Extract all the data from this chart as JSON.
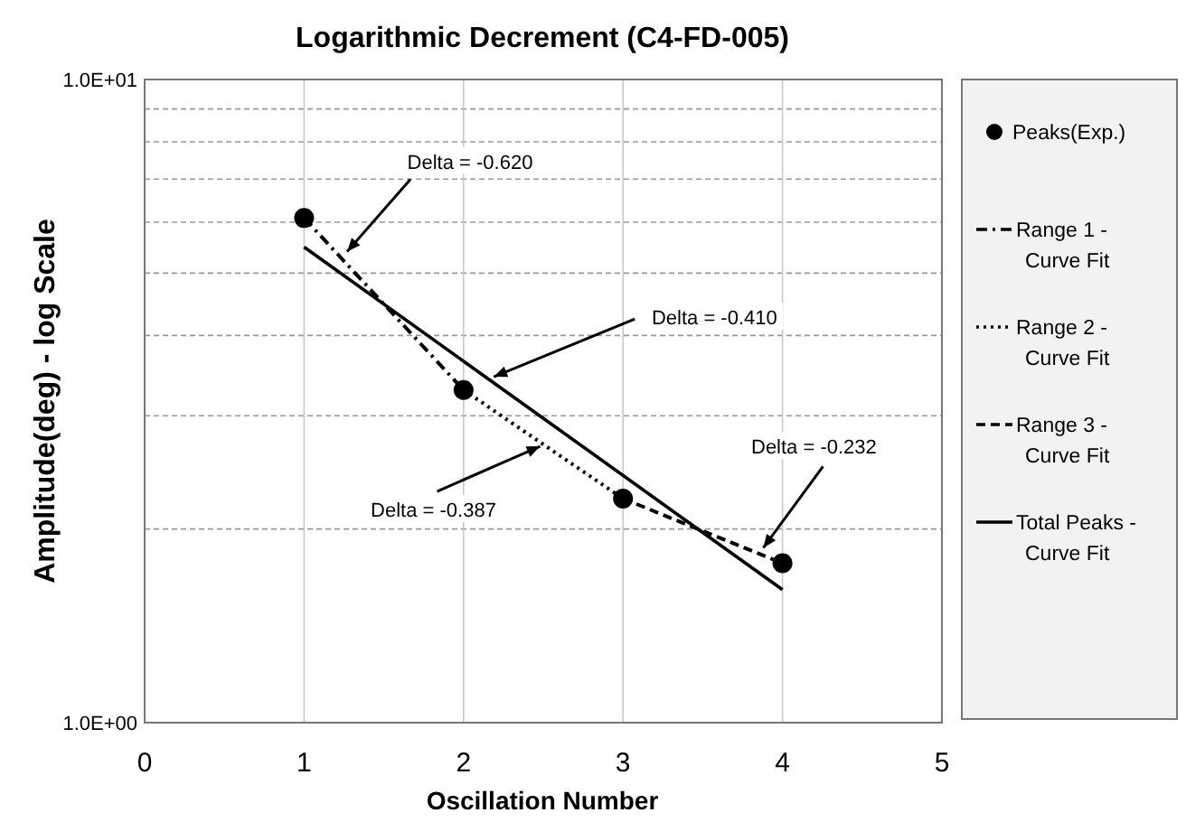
{
  "chart_data": {
    "type": "line",
    "title": "Logarithmic Decrement (C4-FD-005)",
    "xlabel": "Oscillation Number",
    "ylabel": "Amplitude(deg) - log Scale",
    "log": "y",
    "xlim": [
      0,
      5
    ],
    "xticks": [
      0,
      1,
      2,
      3,
      4,
      5
    ],
    "ylim": [
      1,
      10
    ],
    "yticks": [
      {
        "value": 1,
        "label": "1.0E+00"
      },
      {
        "value": 2,
        "label": null
      },
      {
        "value": 3,
        "label": null
      },
      {
        "value": 4,
        "label": null
      },
      {
        "value": 5,
        "label": null
      },
      {
        "value": 6,
        "label": null
      },
      {
        "value": 7,
        "label": null
      },
      {
        "value": 8,
        "label": null
      },
      {
        "value": 9,
        "label": null
      },
      {
        "value": 10,
        "label": "1.0E+01"
      }
    ],
    "grid": true,
    "legend": "right",
    "series": [
      {
        "name": "Peaks(Exp.)",
        "type": "scatter",
        "marker": "circle",
        "color": "#000000",
        "x": [
          1,
          2,
          3,
          4
        ],
        "values": [
          6.09,
          3.29,
          2.23,
          1.77
        ]
      },
      {
        "name": "Range 1 - Curve Fit",
        "line_style": "dashdot",
        "color": "#000000",
        "x": [
          1,
          2
        ],
        "values": [
          6.09,
          3.29
        ]
      },
      {
        "name": "Range 2 - Curve Fit",
        "line_style": "dotted",
        "color": "#000000",
        "x": [
          2,
          3
        ],
        "values": [
          3.29,
          2.23
        ]
      },
      {
        "name": "Range 3 - Curve Fit",
        "line_style": "dashed",
        "color": "#000000",
        "x": [
          3,
          4
        ],
        "values": [
          2.23,
          1.77
        ]
      },
      {
        "name": "Total Peaks - Curve Fit",
        "line_style": "solid",
        "color": "#000000",
        "x": [
          1,
          4
        ],
        "values": [
          5.49,
          1.61
        ]
      }
    ],
    "annotations": [
      {
        "text": "Delta = -0.620",
        "x": 1.27,
        "y": 5.4
      },
      {
        "text": "Delta = -0.410",
        "x": 2.19,
        "y": 3.45
      },
      {
        "text": "Delta = -0.387",
        "x": 2.48,
        "y": 2.69
      },
      {
        "text": "Delta = -0.232",
        "x": 3.88,
        "y": 1.87
      }
    ]
  }
}
